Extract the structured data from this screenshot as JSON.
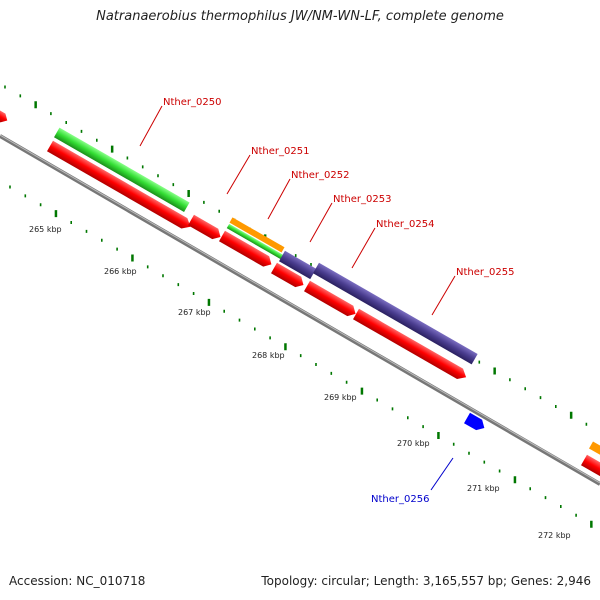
{
  "title": "Natranaerobius thermophilus JW/NM-WN-LF, complete genome",
  "footer": {
    "accession": "Accession: NC_010718",
    "summary": "Topology: circular; Length: 3,165,557 bp; Genes: 2,946"
  },
  "kbp_labels": [
    "265 kbp",
    "266 kbp",
    "267 kbp",
    "268 kbp",
    "269 kbp",
    "270 kbp",
    "271 kbp",
    "272 kbp"
  ],
  "gene_labels": [
    "Nther_0250",
    "Nther_0251",
    "Nther_0252",
    "Nther_0253",
    "Nther_0254",
    "Nther_0255",
    "Nther_0256"
  ],
  "colors": {
    "cds_red": "#ff0000",
    "cds_green": "#33dd33",
    "cds_orange": "#ff9900",
    "cds_purple": "#4a3d8f",
    "cds_blue": "#0000ff",
    "backbone": "#888888",
    "tick": "#007700",
    "label_red": "#cc0000",
    "label_blue": "#0000cc"
  }
}
